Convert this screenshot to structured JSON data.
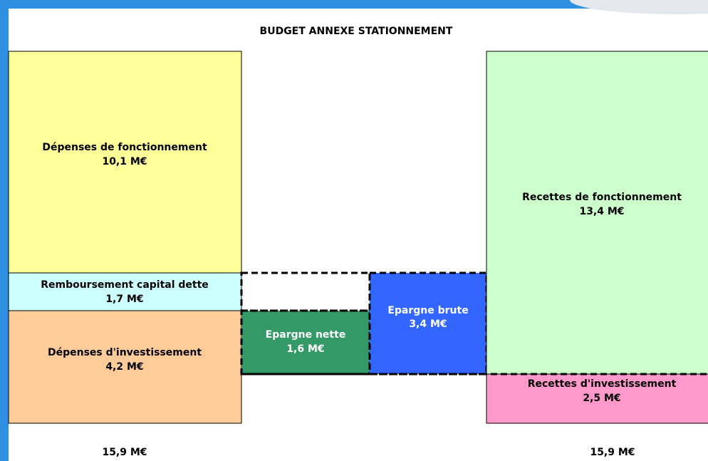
{
  "title": "BUDGET ANNEXE STATIONNEMENT",
  "blocks": [
    {
      "label": "Dépenses de fonctionnement",
      "value": "10,1 M€"
    },
    {
      "label": "Remboursement capital dette",
      "value": "1,7 M€"
    },
    {
      "label": "Dépenses d'investissement",
      "value": "4,2 M€"
    },
    {
      "label": "Epargne nette",
      "value": "1,6 M€"
    },
    {
      "label": "Epargne brute",
      "value": "3,4 M€"
    },
    {
      "label": "Recettes de fonctionnement",
      "value": "13,4 M€"
    },
    {
      "label": "Recettes d'investissement",
      "value": "2,5 M€"
    }
  ],
  "totals": {
    "expenses": "15,9 M€",
    "revenues": "15,9 M€"
  }
}
